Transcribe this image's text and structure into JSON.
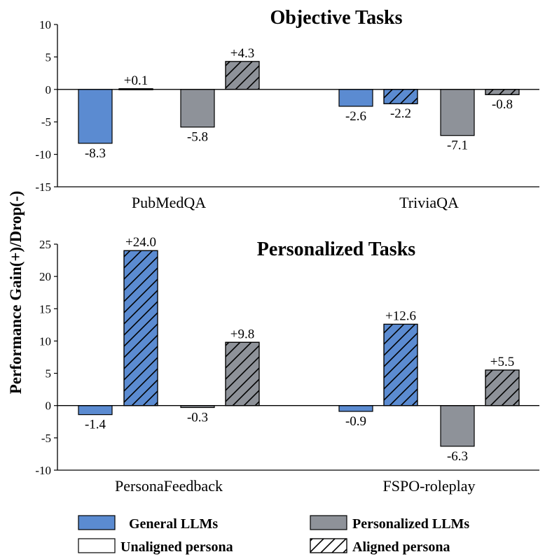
{
  "y_label": "Performance Gain(+)/Drop(-)",
  "colors": {
    "general": "#5b8bd1",
    "personalized": "#8e9299",
    "unaligned": "#ffffff",
    "border": "#000000"
  },
  "legend": {
    "general": "General LLMs",
    "personalized": "Personalized LLMs",
    "unaligned": "Unaligned persona",
    "aligned": "Aligned persona"
  },
  "chart_data": [
    {
      "type": "bar",
      "title": "Objective Tasks",
      "categories": [
        "PubMedQA",
        "TriviaQA"
      ],
      "ylim": [
        -15,
        10
      ],
      "yticks": [
        10,
        5,
        0,
        -5,
        -10,
        -15
      ],
      "series": [
        {
          "name": "General LLMs / Unaligned persona",
          "model": "general",
          "aligned": false,
          "values": [
            -8.3,
            -2.6
          ],
          "labels": [
            "-8.3",
            "-2.6"
          ]
        },
        {
          "name": "General LLMs / Aligned persona",
          "model": "general",
          "aligned": true,
          "values": [
            0.1,
            -2.2
          ],
          "labels": [
            "+0.1",
            "-2.2"
          ]
        },
        {
          "name": "Personalized LLMs / Unaligned persona",
          "model": "personalized",
          "aligned": false,
          "values": [
            -5.8,
            -7.1
          ],
          "labels": [
            "-5.8",
            "-7.1"
          ]
        },
        {
          "name": "Personalized LLMs / Aligned persona",
          "model": "personalized",
          "aligned": true,
          "values": [
            4.3,
            -0.8
          ],
          "labels": [
            "+4.3",
            "-0.8"
          ]
        }
      ]
    },
    {
      "type": "bar",
      "title": "Personalized Tasks",
      "categories": [
        "PersonaFeedback",
        "FSPO-roleplay"
      ],
      "ylim": [
        -10,
        25
      ],
      "yticks": [
        25,
        20,
        15,
        10,
        5,
        0,
        -5,
        -10
      ],
      "series": [
        {
          "name": "General LLMs / Unaligned persona",
          "model": "general",
          "aligned": false,
          "values": [
            -1.4,
            -0.9
          ],
          "labels": [
            "-1.4",
            "-0.9"
          ]
        },
        {
          "name": "General LLMs / Aligned persona",
          "model": "general",
          "aligned": true,
          "values": [
            24.0,
            12.6
          ],
          "labels": [
            "+24.0",
            "+12.6"
          ]
        },
        {
          "name": "Personalized LLMs / Unaligned persona",
          "model": "personalized",
          "aligned": false,
          "values": [
            -0.3,
            -6.3
          ],
          "labels": [
            "-0.3",
            "-6.3"
          ]
        },
        {
          "name": "Personalized LLMs / Aligned persona",
          "model": "personalized",
          "aligned": true,
          "values": [
            9.8,
            5.5
          ],
          "labels": [
            "+9.8",
            "+5.5"
          ]
        }
      ]
    }
  ]
}
